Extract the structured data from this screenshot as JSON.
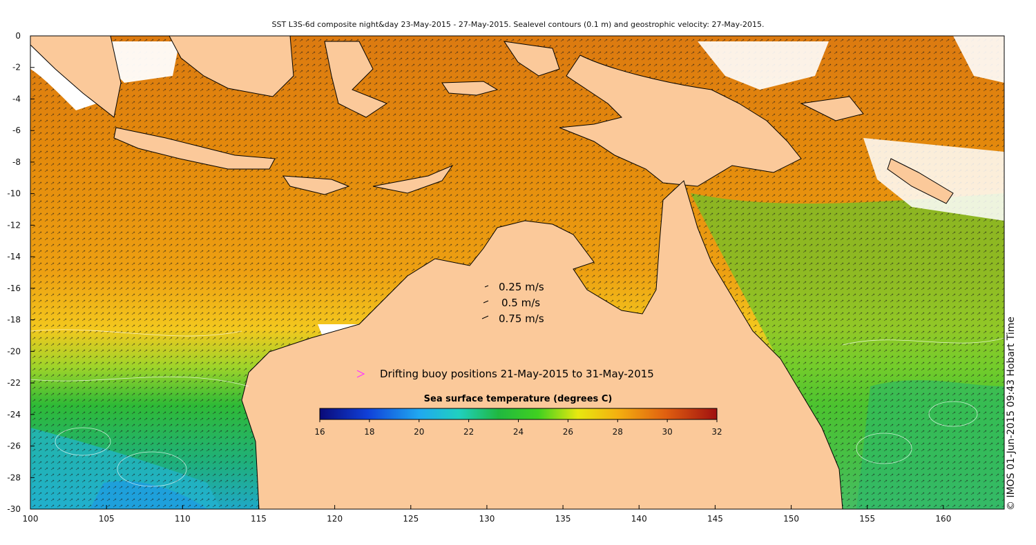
{
  "title": "SST L3S-6d composite night&day 23-May-2015 - 27-May-2015. Sealevel contours (0.1 m) and geostrophic velocity: 27-May-2015.",
  "credit": "© IMOS 01-Jun-2015 09:43 Hobart Time",
  "x_ticks": [
    "100",
    "105",
    "110",
    "115",
    "120",
    "125",
    "130",
    "135",
    "140",
    "145",
    "150",
    "155",
    "160"
  ],
  "y_ticks": [
    "0",
    "-2",
    "-4",
    "-6",
    "-8",
    "-10",
    "-12",
    "-14",
    "-16",
    "-18",
    "-20",
    "-22",
    "-24",
    "-26",
    "-28",
    "-30"
  ],
  "velocity_legend": [
    "0.25 m/s",
    "0.5 m/s",
    "0.75 m/s"
  ],
  "buoy_legend": "Drifting buoy positions 21-May-2015 to 31-May-2015",
  "colorbar": {
    "title": "Sea surface temperature (degrees C)",
    "ticks": [
      "16",
      "18",
      "20",
      "22",
      "24",
      "26",
      "28",
      "30",
      "32"
    ]
  },
  "colors": {
    "land": "#fbc99a",
    "warm": "#e8860a",
    "mid": "#f4c21a",
    "cool": "#2eb82e",
    "cold": "#22b8d8",
    "buoy": "#ff33ff"
  }
}
